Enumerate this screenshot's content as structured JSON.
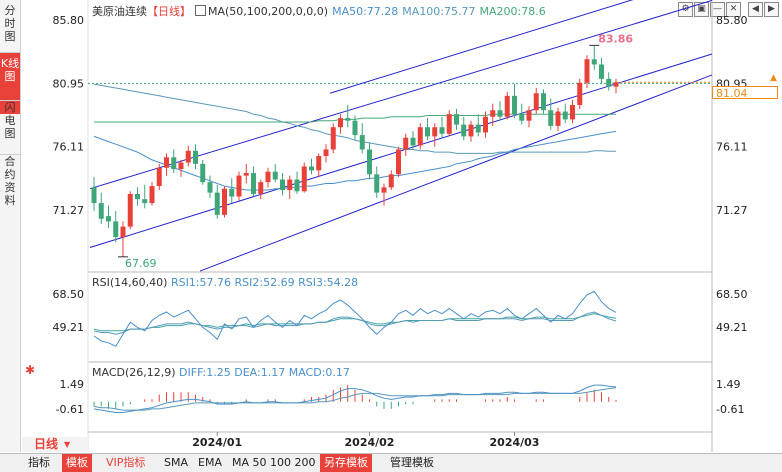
{
  "left_tabs": [
    {
      "label": "分时图",
      "active": false
    },
    {
      "label": "K线图",
      "active": true
    },
    {
      "label": "闪电图",
      "active": false
    },
    {
      "label": "合约资料",
      "active": false
    }
  ],
  "header": {
    "instrument": "美原油连续",
    "period_tag": "【日线】",
    "ma_param": "MA(50,100,200,0,0,0)",
    "ma50": "MA50:77.28",
    "ma100": "MA100:75.77",
    "ma200": "MA200:78.6"
  },
  "right_icons": [
    "⚙",
    "▣",
    "—",
    "✕",
    "◀",
    "▶"
  ],
  "price_axis": {
    "left_ticks": [
      "85.80",
      "80.95",
      "76.11",
      "71.27"
    ],
    "right_ticks": [
      "85.80",
      "80.95",
      "76.11",
      "71.27"
    ],
    "last_price": "81.04",
    "high_label": "83.86",
    "low_label": "67.69"
  },
  "rsi": {
    "label": "RSI(14,60,40)",
    "rsi1": "RSI1:57.76",
    "rsi2": "RSI2:52.69",
    "rsi3": "RSI3:54.28",
    "left_ticks": [
      "68.50",
      "49.21"
    ],
    "right_ticks": [
      "68.50",
      "49.21"
    ]
  },
  "macd": {
    "label": "MACD(26,12,9)",
    "diff": "DIFF:1.25",
    "dea": "DEA:1.17",
    "macd": "MACD:0.17",
    "left_ticks": [
      "1.49",
      "-0.61"
    ],
    "right_ticks": [
      "1.49",
      "-0.61"
    ]
  },
  "date_labels": [
    "2024/01",
    "2024/02",
    "2024/03"
  ],
  "period_label": "日线",
  "bottom_toolbar": [
    "指标",
    "模板",
    "VIP指标",
    "SMA",
    "EMA",
    "MA 50 100 200",
    "另存模板",
    "管理模板"
  ],
  "colors": {
    "up": "#e8413a",
    "down": "#3fa67a",
    "ma50": "#4a90c8",
    "ma100": "#5a98b8",
    "ma200": "#48a878",
    "channel": "#2222cc",
    "last_price": "#f08a1c"
  },
  "chart_data": {
    "type": "candlestick",
    "title": "美原油连续【日线】",
    "ylim": [
      67.0,
      86.5
    ],
    "candles": [
      {
        "o": 73.0,
        "h": 73.8,
        "l": 71.2,
        "c": 71.8
      },
      {
        "o": 71.8,
        "h": 72.6,
        "l": 70.2,
        "c": 70.6
      },
      {
        "o": 70.8,
        "h": 71.6,
        "l": 69.9,
        "c": 70.4
      },
      {
        "o": 70.4,
        "h": 71.2,
        "l": 68.8,
        "c": 69.2
      },
      {
        "o": 69.2,
        "h": 70.4,
        "l": 67.69,
        "c": 70.0
      },
      {
        "o": 70.0,
        "h": 72.7,
        "l": 69.8,
        "c": 72.5
      },
      {
        "o": 72.5,
        "h": 73.0,
        "l": 71.6,
        "c": 72.1
      },
      {
        "o": 72.1,
        "h": 73.2,
        "l": 71.4,
        "c": 71.8
      },
      {
        "o": 71.8,
        "h": 73.4,
        "l": 71.6,
        "c": 73.1
      },
      {
        "o": 73.1,
        "h": 74.8,
        "l": 72.8,
        "c": 74.5
      },
      {
        "o": 74.5,
        "h": 75.6,
        "l": 73.9,
        "c": 75.3
      },
      {
        "o": 75.3,
        "h": 75.9,
        "l": 74.1,
        "c": 74.4
      },
      {
        "o": 74.4,
        "h": 75.1,
        "l": 73.8,
        "c": 74.9
      },
      {
        "o": 74.9,
        "h": 76.2,
        "l": 74.6,
        "c": 75.8
      },
      {
        "o": 75.8,
        "h": 76.3,
        "l": 74.4,
        "c": 74.8
      },
      {
        "o": 74.8,
        "h": 75.1,
        "l": 73.2,
        "c": 73.4
      },
      {
        "o": 73.4,
        "h": 73.9,
        "l": 72.2,
        "c": 72.6
      },
      {
        "o": 72.6,
        "h": 73.2,
        "l": 70.6,
        "c": 70.9
      },
      {
        "o": 70.9,
        "h": 73.1,
        "l": 70.7,
        "c": 72.9
      },
      {
        "o": 72.9,
        "h": 73.7,
        "l": 71.8,
        "c": 72.3
      },
      {
        "o": 72.3,
        "h": 74.2,
        "l": 72.0,
        "c": 73.9
      },
      {
        "o": 73.9,
        "h": 74.8,
        "l": 73.3,
        "c": 74.1
      },
      {
        "o": 74.1,
        "h": 74.6,
        "l": 72.3,
        "c": 72.5
      },
      {
        "o": 72.5,
        "h": 73.6,
        "l": 72.1,
        "c": 73.4
      },
      {
        "o": 73.4,
        "h": 74.5,
        "l": 73.0,
        "c": 74.2
      },
      {
        "o": 74.2,
        "h": 74.8,
        "l": 73.4,
        "c": 73.6
      },
      {
        "o": 73.6,
        "h": 74.1,
        "l": 72.4,
        "c": 72.8
      },
      {
        "o": 72.8,
        "h": 73.9,
        "l": 72.1,
        "c": 73.6
      },
      {
        "o": 73.6,
        "h": 74.2,
        "l": 72.5,
        "c": 72.7
      },
      {
        "o": 72.7,
        "h": 74.9,
        "l": 72.6,
        "c": 74.6
      },
      {
        "o": 74.6,
        "h": 75.2,
        "l": 74.0,
        "c": 74.3
      },
      {
        "o": 74.3,
        "h": 75.6,
        "l": 73.8,
        "c": 75.4
      },
      {
        "o": 75.4,
        "h": 76.3,
        "l": 74.9,
        "c": 75.9
      },
      {
        "o": 75.9,
        "h": 77.9,
        "l": 75.6,
        "c": 77.6
      },
      {
        "o": 77.6,
        "h": 78.6,
        "l": 77.1,
        "c": 78.3
      },
      {
        "o": 78.3,
        "h": 79.3,
        "l": 77.6,
        "c": 78.1
      },
      {
        "o": 78.1,
        "h": 78.5,
        "l": 76.6,
        "c": 77.0
      },
      {
        "o": 77.0,
        "h": 77.9,
        "l": 75.6,
        "c": 75.9
      },
      {
        "o": 75.9,
        "h": 76.4,
        "l": 73.6,
        "c": 74.0
      },
      {
        "o": 74.0,
        "h": 74.6,
        "l": 72.2,
        "c": 72.6
      },
      {
        "o": 72.6,
        "h": 73.3,
        "l": 71.6,
        "c": 73.0
      },
      {
        "o": 73.0,
        "h": 74.3,
        "l": 72.8,
        "c": 74.0
      },
      {
        "o": 74.0,
        "h": 76.1,
        "l": 73.8,
        "c": 75.9
      },
      {
        "o": 75.9,
        "h": 77.1,
        "l": 75.4,
        "c": 76.8
      },
      {
        "o": 76.8,
        "h": 77.3,
        "l": 75.9,
        "c": 76.2
      },
      {
        "o": 76.2,
        "h": 77.9,
        "l": 75.9,
        "c": 77.6
      },
      {
        "o": 77.6,
        "h": 78.3,
        "l": 76.6,
        "c": 76.9
      },
      {
        "o": 76.9,
        "h": 77.9,
        "l": 76.1,
        "c": 77.6
      },
      {
        "o": 77.6,
        "h": 78.4,
        "l": 76.8,
        "c": 77.1
      },
      {
        "o": 77.1,
        "h": 78.9,
        "l": 76.9,
        "c": 78.6
      },
      {
        "o": 78.6,
        "h": 79.0,
        "l": 77.4,
        "c": 77.8
      },
      {
        "o": 77.8,
        "h": 78.4,
        "l": 76.6,
        "c": 76.9
      },
      {
        "o": 76.9,
        "h": 78.1,
        "l": 76.5,
        "c": 77.8
      },
      {
        "o": 77.8,
        "h": 78.6,
        "l": 76.9,
        "c": 77.2
      },
      {
        "o": 77.2,
        "h": 78.8,
        "l": 76.8,
        "c": 78.4
      },
      {
        "o": 78.4,
        "h": 79.4,
        "l": 77.7,
        "c": 78.9
      },
      {
        "o": 78.9,
        "h": 79.6,
        "l": 78.1,
        "c": 78.4
      },
      {
        "o": 78.4,
        "h": 80.3,
        "l": 78.2,
        "c": 80.0
      },
      {
        "o": 80.0,
        "h": 80.9,
        "l": 78.3,
        "c": 78.6
      },
      {
        "o": 78.6,
        "h": 79.4,
        "l": 77.8,
        "c": 78.1
      },
      {
        "o": 78.1,
        "h": 79.2,
        "l": 77.6,
        "c": 78.9
      },
      {
        "o": 78.9,
        "h": 80.6,
        "l": 78.6,
        "c": 80.2
      },
      {
        "o": 80.2,
        "h": 80.5,
        "l": 78.6,
        "c": 78.9
      },
      {
        "o": 78.9,
        "h": 79.8,
        "l": 77.4,
        "c": 77.7
      },
      {
        "o": 77.7,
        "h": 79.1,
        "l": 77.3,
        "c": 78.8
      },
      {
        "o": 78.8,
        "h": 79.4,
        "l": 77.9,
        "c": 78.2
      },
      {
        "o": 78.2,
        "h": 79.7,
        "l": 77.9,
        "c": 79.3
      },
      {
        "o": 79.3,
        "h": 81.3,
        "l": 79.0,
        "c": 81.0
      },
      {
        "o": 81.0,
        "h": 83.1,
        "l": 80.6,
        "c": 82.8
      },
      {
        "o": 82.8,
        "h": 83.86,
        "l": 82.0,
        "c": 82.4
      },
      {
        "o": 82.4,
        "h": 82.9,
        "l": 80.9,
        "c": 81.3
      },
      {
        "o": 81.3,
        "h": 81.8,
        "l": 80.4,
        "c": 80.7
      },
      {
        "o": 80.7,
        "h": 81.3,
        "l": 80.2,
        "c": 81.04
      }
    ],
    "ma50": [
      76.9,
      76.7,
      76.5,
      76.3,
      76.1,
      75.9,
      75.7,
      75.4,
      75.1,
      74.9,
      74.7,
      74.5,
      74.3,
      74.1,
      73.9,
      73.7,
      73.5,
      73.3,
      73.1,
      73.0,
      72.9,
      72.8,
      72.8,
      72.8,
      72.8,
      72.9,
      72.9,
      73.0,
      73.0,
      73.1,
      73.1,
      73.2,
      73.3,
      73.3,
      73.4,
      73.5,
      73.5,
      73.6,
      73.7,
      73.7,
      73.8,
      73.9,
      73.9,
      74.0,
      74.1,
      74.2,
      74.3,
      74.4,
      74.5,
      74.6,
      74.8,
      74.9,
      75.0,
      75.2,
      75.3,
      75.4,
      75.6,
      75.7,
      75.9,
      76.0,
      76.1,
      76.2,
      76.3,
      76.4,
      76.5,
      76.6,
      76.7,
      76.8,
      76.9,
      77.0,
      77.1,
      77.2,
      77.28
    ],
    "ma100": [
      80.9,
      80.8,
      80.7,
      80.6,
      80.5,
      80.4,
      80.3,
      80.2,
      80.1,
      80.0,
      79.9,
      79.8,
      79.7,
      79.6,
      79.5,
      79.4,
      79.3,
      79.2,
      79.1,
      79.0,
      78.9,
      78.8,
      78.6,
      78.5,
      78.3,
      78.2,
      78.0,
      77.9,
      77.7,
      77.6,
      77.4,
      77.3,
      77.1,
      77.0,
      76.9,
      76.8,
      76.6,
      76.5,
      76.4,
      76.3,
      76.2,
      76.1,
      76.0,
      75.9,
      75.9,
      75.8,
      75.8,
      75.7,
      75.7,
      75.7,
      75.6,
      75.6,
      75.6,
      75.6,
      75.6,
      75.6,
      75.7,
      75.7,
      75.7,
      75.7,
      75.7,
      75.7,
      75.7,
      75.7,
      75.7,
      75.7,
      75.7,
      75.7,
      75.7,
      75.8,
      75.8,
      75.77,
      75.77
    ],
    "ma200": [
      78.0,
      78.0,
      78.0,
      78.0,
      78.0,
      78.0,
      78.0,
      78.0,
      78.0,
      78.0,
      78.0,
      78.0,
      78.0,
      78.0,
      78.0,
      78.0,
      78.0,
      78.0,
      78.0,
      78.0,
      78.0,
      78.0,
      78.0,
      78.0,
      78.0,
      78.0,
      78.0,
      78.0,
      78.0,
      78.0,
      78.0,
      78.1,
      78.1,
      78.1,
      78.2,
      78.2,
      78.2,
      78.3,
      78.3,
      78.3,
      78.3,
      78.4,
      78.4,
      78.4,
      78.4,
      78.4,
      78.5,
      78.5,
      78.5,
      78.5,
      78.5,
      78.5,
      78.5,
      78.5,
      78.5,
      78.6,
      78.6,
      78.6,
      78.6,
      78.6,
      78.6,
      78.6,
      78.6,
      78.6,
      78.6,
      78.6,
      78.6,
      78.6,
      78.6,
      78.6,
      78.6,
      78.6,
      78.6
    ],
    "rsi_ylim": [
      35,
      75
    ],
    "rsi1": [
      44,
      41,
      40,
      38,
      45,
      52,
      49,
      47,
      53,
      56,
      58,
      55,
      57,
      59,
      54,
      49,
      46,
      42,
      51,
      48,
      54,
      55,
      49,
      53,
      56,
      52,
      49,
      53,
      50,
      56,
      54,
      57,
      59,
      63,
      65,
      62,
      58,
      54,
      49,
      45,
      49,
      52,
      57,
      59,
      56,
      60,
      57,
      59,
      57,
      60,
      57,
      54,
      57,
      55,
      58,
      59,
      57,
      60,
      56,
      54,
      57,
      60,
      56,
      52,
      56,
      54,
      57,
      63,
      68,
      70,
      64,
      60,
      57.76
    ],
    "rsi2": [
      47,
      46,
      46,
      45,
      46,
      48,
      48,
      48,
      49,
      50,
      51,
      51,
      51,
      52,
      51,
      50,
      49,
      48,
      49,
      49,
      50,
      50,
      49,
      50,
      51,
      50,
      50,
      50,
      50,
      51,
      51,
      52,
      52,
      54,
      55,
      55,
      54,
      53,
      51,
      50,
      50,
      51,
      52,
      53,
      52,
      53,
      53,
      53,
      53,
      54,
      53,
      53,
      53,
      53,
      54,
      54,
      54,
      54,
      54,
      53,
      54,
      54,
      54,
      53,
      53,
      53,
      53,
      55,
      57,
      58,
      56,
      54,
      52.69
    ],
    "rsi3": [
      48,
      47,
      47,
      47,
      47,
      48,
      48,
      48,
      49,
      49,
      50,
      50,
      50,
      51,
      51,
      50,
      50,
      49,
      50,
      50,
      50,
      51,
      50,
      51,
      51,
      51,
      51,
      51,
      51,
      51,
      51,
      52,
      52,
      53,
      54,
      54,
      54,
      53,
      52,
      51,
      51,
      52,
      52,
      53,
      53,
      53,
      53,
      53,
      53,
      54,
      54,
      54,
      54,
      54,
      54,
      54,
      54,
      55,
      55,
      54,
      54,
      55,
      55,
      54,
      54,
      54,
      54,
      55,
      56,
      57,
      56,
      55,
      54.28
    ],
    "macd_ylim": [
      -1.6,
      2.4
    ],
    "diff": [
      -0.6,
      -0.7,
      -0.8,
      -0.9,
      -0.9,
      -0.8,
      -0.7,
      -0.6,
      -0.5,
      -0.3,
      -0.1,
      0.0,
      0.1,
      0.2,
      0.2,
      0.1,
      0.0,
      -0.2,
      -0.2,
      -0.2,
      -0.1,
      0.0,
      -0.1,
      -0.1,
      0.0,
      0.0,
      -0.1,
      -0.1,
      -0.1,
      0.0,
      0.1,
      0.2,
      0.3,
      0.6,
      0.9,
      1.1,
      1.1,
      1.0,
      0.8,
      0.5,
      0.3,
      0.2,
      0.3,
      0.4,
      0.4,
      0.5,
      0.5,
      0.6,
      0.6,
      0.7,
      0.7,
      0.6,
      0.6,
      0.6,
      0.7,
      0.7,
      0.7,
      0.8,
      0.8,
      0.7,
      0.7,
      0.8,
      0.8,
      0.7,
      0.7,
      0.7,
      0.7,
      0.9,
      1.2,
      1.4,
      1.4,
      1.3,
      1.25
    ],
    "dea": [
      -0.4,
      -0.5,
      -0.5,
      -0.6,
      -0.7,
      -0.7,
      -0.7,
      -0.7,
      -0.6,
      -0.6,
      -0.5,
      -0.4,
      -0.3,
      -0.2,
      -0.1,
      -0.1,
      -0.1,
      -0.1,
      -0.1,
      -0.1,
      -0.1,
      -0.1,
      -0.1,
      -0.1,
      -0.1,
      -0.1,
      -0.1,
      -0.1,
      -0.1,
      -0.1,
      -0.1,
      0.0,
      0.0,
      0.1,
      0.3,
      0.4,
      0.6,
      0.7,
      0.7,
      0.7,
      0.6,
      0.5,
      0.5,
      0.5,
      0.5,
      0.5,
      0.5,
      0.5,
      0.5,
      0.6,
      0.6,
      0.6,
      0.6,
      0.6,
      0.6,
      0.6,
      0.6,
      0.6,
      0.7,
      0.7,
      0.7,
      0.7,
      0.7,
      0.7,
      0.7,
      0.7,
      0.7,
      0.7,
      0.8,
      0.9,
      1.0,
      1.1,
      1.17
    ]
  }
}
